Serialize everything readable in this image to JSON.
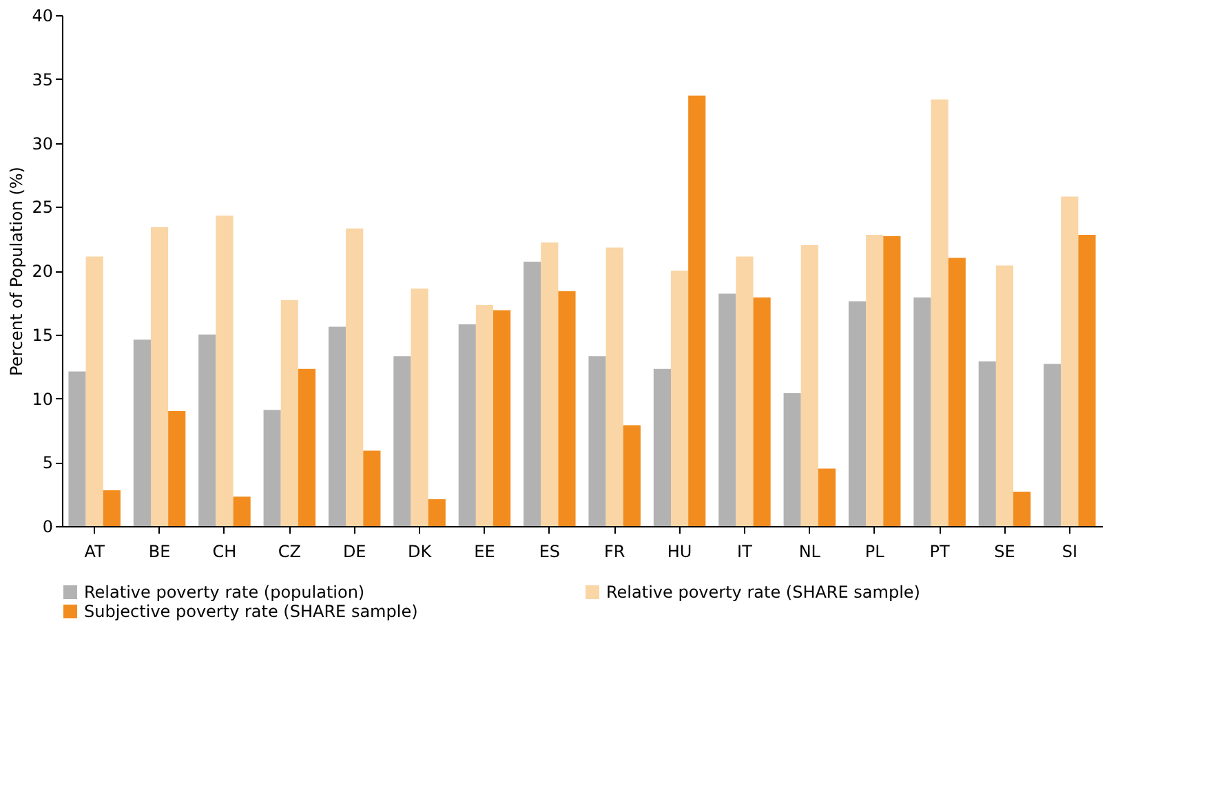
{
  "chart_data": {
    "type": "bar",
    "ylabel": "Percent of Population (%)",
    "categories": [
      "AT",
      "BE",
      "CH",
      "CZ",
      "DE",
      "DK",
      "EE",
      "ES",
      "FR",
      "HU",
      "IT",
      "NL",
      "PL",
      "PT",
      "SE",
      "SI"
    ],
    "series": [
      {
        "name": "Relative poverty rate (population)",
        "color": "#b2b2b2",
        "values": [
          12.1,
          14.6,
          15.0,
          9.1,
          15.6,
          13.3,
          15.8,
          20.7,
          13.3,
          12.3,
          18.2,
          10.4,
          17.6,
          17.9,
          12.9,
          12.7
        ]
      },
      {
        "name": "Relative poverty rate (SHARE sample)",
        "color": "#fad5a5",
        "values": [
          21.1,
          23.4,
          24.3,
          17.7,
          23.3,
          18.6,
          17.3,
          22.2,
          21.8,
          20.0,
          21.1,
          22.0,
          22.8,
          33.4,
          20.4,
          25.8
        ]
      },
      {
        "name": "Subjective poverty rate (SHARE sample)",
        "color": "#f28c1e",
        "values": [
          2.8,
          9.0,
          2.3,
          12.3,
          5.9,
          2.1,
          16.9,
          18.4,
          7.9,
          33.7,
          17.9,
          4.5,
          22.7,
          21.0,
          2.7,
          22.8
        ]
      }
    ],
    "ylim": [
      0,
      40
    ],
    "yticks": [
      0,
      5,
      10,
      15,
      20,
      25,
      30,
      35,
      40
    ],
    "grid": false,
    "legend": "bottom"
  }
}
